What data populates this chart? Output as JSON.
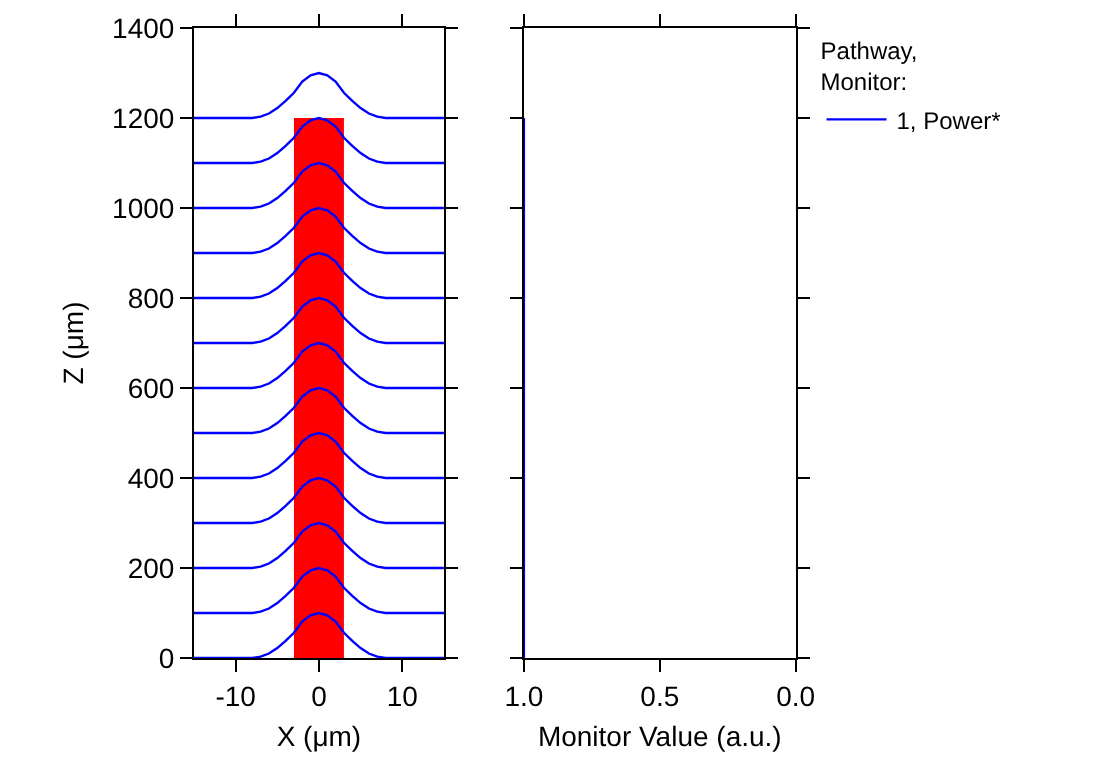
{
  "chart_data": [
    {
      "type": "line",
      "xlabel": "X (μm)",
      "ylabel": "Z (μm)",
      "xlim": [
        -15,
        15
      ],
      "xticks": [
        -10,
        0,
        10
      ],
      "ylim": [
        0,
        1400
      ],
      "yticks": [
        0,
        200,
        400,
        600,
        800,
        1000,
        1200,
        1400
      ],
      "series": [
        {
          "type": "area",
          "color": "#ff0000",
          "x": [
            -3,
            3
          ],
          "values": [
            1200,
            1200
          ]
        },
        {
          "color": "#0000ff",
          "x": [
            -15,
            -8,
            -7,
            -6,
            -5,
            -4,
            -3,
            -2,
            -1,
            0,
            1,
            2,
            3,
            4,
            5,
            6,
            7,
            8,
            15
          ],
          "values": [
            0,
            0,
            3,
            10,
            22,
            38,
            56,
            81,
            95,
            100,
            95,
            81,
            56,
            38,
            22,
            10,
            3,
            0,
            0
          ]
        },
        {
          "color": "#0000ff",
          "x": [
            -15,
            -8,
            -7,
            -6,
            -5,
            -4,
            -3,
            -2,
            -1,
            0,
            1,
            2,
            3,
            4,
            5,
            6,
            7,
            8,
            15
          ],
          "values": [
            100,
            100,
            103,
            110,
            122,
            138,
            156,
            181,
            195,
            200,
            195,
            181,
            156,
            138,
            122,
            110,
            103,
            100,
            100
          ]
        },
        {
          "color": "#0000ff",
          "x": [
            -15,
            -8,
            -7,
            -6,
            -5,
            -4,
            -3,
            -2,
            -1,
            0,
            1,
            2,
            3,
            4,
            5,
            6,
            7,
            8,
            15
          ],
          "values": [
            200,
            200,
            203,
            210,
            222,
            238,
            256,
            281,
            295,
            300,
            295,
            281,
            256,
            238,
            222,
            210,
            203,
            200,
            200
          ]
        },
        {
          "color": "#0000ff",
          "x": [
            -15,
            -8,
            -7,
            -6,
            -5,
            -4,
            -3,
            -2,
            -1,
            0,
            1,
            2,
            3,
            4,
            5,
            6,
            7,
            8,
            15
          ],
          "values": [
            300,
            300,
            303,
            310,
            322,
            338,
            356,
            381,
            395,
            400,
            395,
            381,
            356,
            338,
            322,
            310,
            303,
            300,
            300
          ]
        },
        {
          "color": "#0000ff",
          "x": [
            -15,
            -8,
            -7,
            -6,
            -5,
            -4,
            -3,
            -2,
            -1,
            0,
            1,
            2,
            3,
            4,
            5,
            6,
            7,
            8,
            15
          ],
          "values": [
            400,
            400,
            403,
            410,
            422,
            438,
            456,
            481,
            495,
            500,
            495,
            481,
            456,
            438,
            422,
            410,
            403,
            400,
            400
          ]
        },
        {
          "color": "#0000ff",
          "x": [
            -15,
            -8,
            -7,
            -6,
            -5,
            -4,
            -3,
            -2,
            -1,
            0,
            1,
            2,
            3,
            4,
            5,
            6,
            7,
            8,
            15
          ],
          "values": [
            500,
            500,
            503,
            510,
            522,
            538,
            556,
            581,
            595,
            600,
            595,
            581,
            556,
            538,
            522,
            510,
            503,
            500,
            500
          ]
        },
        {
          "color": "#0000ff",
          "x": [
            -15,
            -8,
            -7,
            -6,
            -5,
            -4,
            -3,
            -2,
            -1,
            0,
            1,
            2,
            3,
            4,
            5,
            6,
            7,
            8,
            15
          ],
          "values": [
            600,
            600,
            603,
            610,
            622,
            638,
            656,
            681,
            695,
            700,
            695,
            681,
            656,
            638,
            622,
            610,
            603,
            600,
            600
          ]
        },
        {
          "color": "#0000ff",
          "x": [
            -15,
            -8,
            -7,
            -6,
            -5,
            -4,
            -3,
            -2,
            -1,
            0,
            1,
            2,
            3,
            4,
            5,
            6,
            7,
            8,
            15
          ],
          "values": [
            700,
            700,
            703,
            710,
            722,
            738,
            756,
            781,
            795,
            800,
            795,
            781,
            756,
            738,
            722,
            710,
            703,
            700,
            700
          ]
        },
        {
          "color": "#0000ff",
          "x": [
            -15,
            -8,
            -7,
            -6,
            -5,
            -4,
            -3,
            -2,
            -1,
            0,
            1,
            2,
            3,
            4,
            5,
            6,
            7,
            8,
            15
          ],
          "values": [
            800,
            800,
            803,
            810,
            822,
            838,
            856,
            881,
            895,
            900,
            895,
            881,
            856,
            838,
            822,
            810,
            803,
            800,
            800
          ]
        },
        {
          "color": "#0000ff",
          "x": [
            -15,
            -8,
            -7,
            -6,
            -5,
            -4,
            -3,
            -2,
            -1,
            0,
            1,
            2,
            3,
            4,
            5,
            6,
            7,
            8,
            15
          ],
          "values": [
            900,
            900,
            903,
            910,
            922,
            938,
            956,
            981,
            995,
            1000,
            995,
            981,
            956,
            938,
            922,
            910,
            903,
            900,
            900
          ]
        },
        {
          "color": "#0000ff",
          "x": [
            -15,
            -8,
            -7,
            -6,
            -5,
            -4,
            -3,
            -2,
            -1,
            0,
            1,
            2,
            3,
            4,
            5,
            6,
            7,
            8,
            15
          ],
          "values": [
            1000,
            1000,
            1003,
            1010,
            1022,
            1038,
            1056,
            1081,
            1095,
            1100,
            1095,
            1081,
            1056,
            1038,
            1022,
            1010,
            1003,
            1000,
            1000
          ]
        },
        {
          "color": "#0000ff",
          "x": [
            -15,
            -8,
            -7,
            -6,
            -5,
            -4,
            -3,
            -2,
            -1,
            0,
            1,
            2,
            3,
            4,
            5,
            6,
            7,
            8,
            15
          ],
          "values": [
            1100,
            1100,
            1103,
            1110,
            1122,
            1138,
            1156,
            1181,
            1195,
            1200,
            1195,
            1181,
            1156,
            1138,
            1122,
            1110,
            1103,
            1100,
            1100
          ]
        },
        {
          "color": "#0000ff",
          "x": [
            -15,
            -8,
            -7,
            -6,
            -5,
            -4,
            -3,
            -2,
            -1,
            0,
            1,
            2,
            3,
            4,
            5,
            6,
            7,
            8,
            15
          ],
          "values": [
            1200,
            1200,
            1203,
            1210,
            1222,
            1238,
            1256,
            1281,
            1295,
            1300,
            1295,
            1281,
            1256,
            1238,
            1222,
            1210,
            1203,
            1200,
            1200
          ]
        }
      ]
    },
    {
      "type": "line",
      "xlabel": "Monitor Value (a.u.)",
      "xlim": [
        1,
        0
      ],
      "xticks": [
        {
          "value": 1,
          "label": "1.0"
        },
        {
          "value": 0.5,
          "label": "0.5"
        },
        {
          "value": 0,
          "label": "0.0"
        }
      ],
      "ylim": [
        0,
        1400
      ],
      "yticks": [
        0,
        200,
        400,
        600,
        800,
        1000,
        1200,
        1400
      ],
      "tick_labels": "x",
      "legend": "top right",
      "legend_title": "Pathway,\nMonitor:",
      "series": [
        {
          "name": "1, Power*",
          "color": "#0000ff",
          "x": [
            1,
            1,
            1,
            1,
            1,
            1,
            1,
            1,
            1,
            1,
            1,
            1,
            1
          ],
          "values": [
            0,
            100,
            200,
            300,
            400,
            500,
            600,
            700,
            800,
            900,
            1000,
            1100,
            1200
          ]
        }
      ]
    }
  ]
}
